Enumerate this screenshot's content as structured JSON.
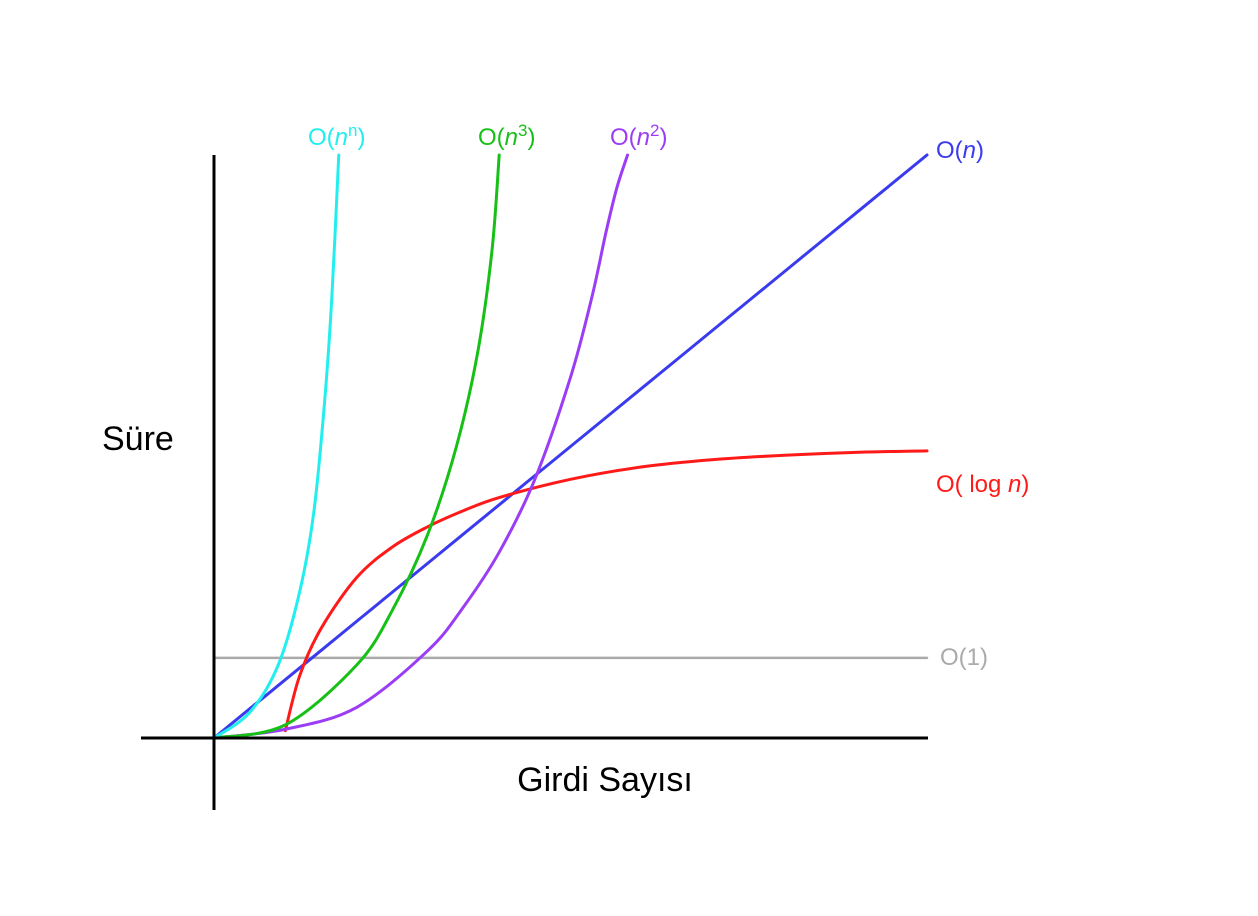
{
  "chart_data": {
    "type": "line",
    "title": "",
    "xlabel": "Girdi Sayısı",
    "ylabel": "Süre",
    "xlim": [
      0,
      10
    ],
    "ylim": [
      0,
      8
    ],
    "grid": false,
    "legend": "none",
    "series": [
      {
        "id": "const",
        "label": {
          "prefix": "O(",
          "var": "",
          "mid": "1",
          "sup": "",
          "suffix": ")"
        },
        "color": "#aaaaaa",
        "x": [
          0,
          1,
          2,
          3,
          4,
          5,
          6,
          7,
          8,
          9,
          10
        ],
        "y": [
          1.1,
          1.1,
          1.1,
          1.1,
          1.1,
          1.1,
          1.1,
          1.1,
          1.1,
          1.1,
          1.1
        ]
      },
      {
        "id": "linear",
        "label": {
          "prefix": "O(",
          "var": "n",
          "mid": "",
          "sup": "",
          "suffix": ")"
        },
        "color": "#3a3aee",
        "x": [
          0,
          1,
          2,
          3,
          4,
          5,
          6,
          7,
          8,
          9,
          10
        ],
        "y": [
          0,
          0.8,
          1.6,
          2.4,
          3.2,
          4.0,
          4.8,
          5.6,
          6.4,
          7.2,
          8.0
        ]
      },
      {
        "id": "log",
        "label": {
          "prefix": "O( log ",
          "var": "n",
          "mid": "",
          "sup": "",
          "suffix": ")"
        },
        "color": "#ff1a1a",
        "x": [
          1,
          1.2,
          1.5,
          2,
          2.5,
          3,
          3.5,
          4,
          5,
          6,
          7,
          8,
          9,
          10
        ],
        "y": [
          0.1,
          0.85,
          1.5,
          2.2,
          2.62,
          2.9,
          3.12,
          3.3,
          3.55,
          3.72,
          3.82,
          3.88,
          3.92,
          3.94
        ]
      },
      {
        "id": "quadratic",
        "label": {
          "prefix": "O(",
          "var": "n",
          "mid": "",
          "sup": "2",
          "suffix": ")"
        },
        "color": "#9b3df5",
        "x": [
          0,
          1,
          2,
          3,
          3.5,
          4,
          4.5,
          5,
          5.3,
          5.5,
          5.65,
          5.8
        ],
        "y": [
          0,
          0.12,
          0.42,
          1.2,
          1.8,
          2.55,
          3.55,
          4.95,
          6.05,
          6.95,
          7.55,
          8.0
        ]
      },
      {
        "id": "cubic",
        "label": {
          "prefix": "O(",
          "var": "n",
          "mid": "",
          "sup": "3",
          "suffix": ")"
        },
        "color": "#17c017",
        "x": [
          0,
          1,
          2,
          2.5,
          3,
          3.4,
          3.7,
          3.9,
          4.0
        ],
        "y": [
          0,
          0.18,
          1.0,
          1.75,
          2.8,
          4.0,
          5.3,
          6.7,
          8.0
        ]
      },
      {
        "id": "exponential",
        "label": {
          "prefix": "O(",
          "var": "n",
          "mid": "",
          "sup": "n",
          "suffix": ")"
        },
        "color": "#22eeee",
        "x": [
          0,
          0.5,
          0.9,
          1.2,
          1.4,
          1.55,
          1.65,
          1.75
        ],
        "y": [
          0,
          0.35,
          1.0,
          2.0,
          3.1,
          4.6,
          6.0,
          8.0
        ]
      }
    ]
  }
}
